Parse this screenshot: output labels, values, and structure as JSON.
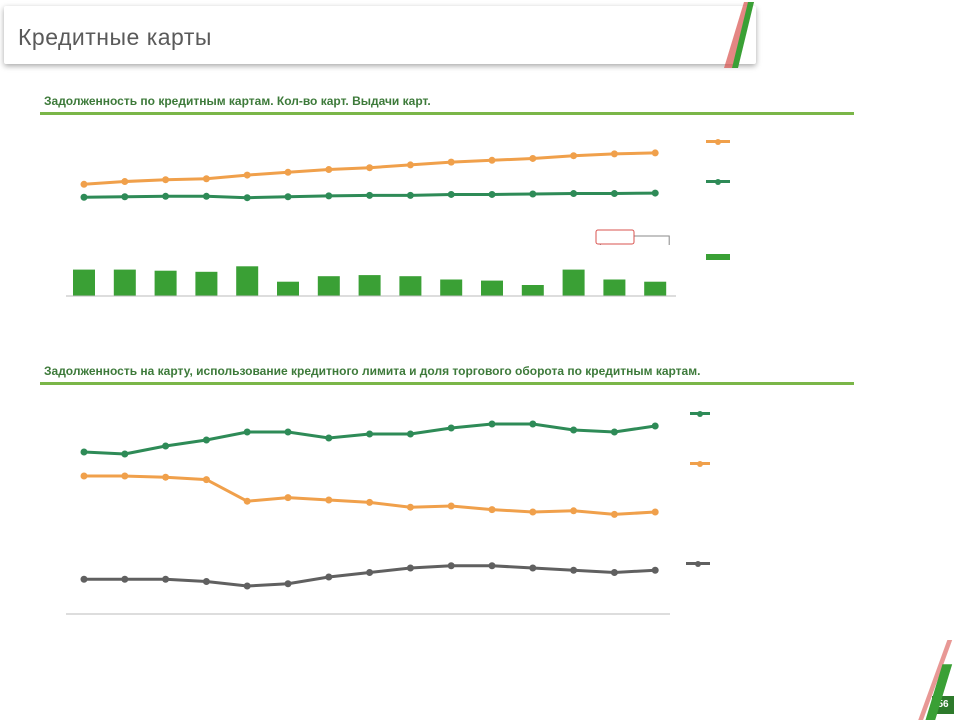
{
  "page": {
    "title": "Кредитные карты",
    "page_number": "56",
    "copyright": "",
    "footnote_source": "",
    "footnote_note": ""
  },
  "colors": {
    "orange": "#f0a04b",
    "green": "#2e8b57",
    "bar_green": "#3aa035",
    "gray": "#606060",
    "rule": "#7ab648",
    "highlight": "#d9534f"
  },
  "section1": {
    "title": "Задолженность по кредитным картам. Кол-во карт. Выдачи карт.",
    "unit": "",
    "callout_line": "",
    "callout_bar": ""
  },
  "section2": {
    "title": "Задолженность на карту, использование кредитного лимита и доля торгового оборота по кредитным картам."
  },
  "chart_data": [
    {
      "type": "line",
      "categories": [
        "",
        "",
        "",
        "",
        "",
        "",
        "",
        "",
        "",
        "",
        "",
        "",
        "",
        "",
        ""
      ],
      "series": [
        {
          "name": "",
          "values": [
            72.0,
            75.0,
            77.0,
            78.0,
            82.0,
            85.0,
            88.0,
            90.0,
            93.0,
            96.0,
            98.0,
            100.0,
            103.0,
            105.0,
            106.0
          ]
        },
        {
          "name": "",
          "values": [
            58.0,
            58.5,
            59.0,
            59.0,
            57.5,
            58.5,
            59.5,
            60.0,
            60.0,
            61.0,
            61.0,
            61.5,
            62.0,
            62.0,
            62.5
          ]
        }
      ],
      "value_labels": [
        [
          "",
          "",
          "",
          "",
          "",
          "",
          "",
          "",
          "",
          "",
          "",
          "",
          "",
          "",
          ""
        ],
        [
          "",
          "",
          "",
          "",
          "",
          "",
          "",
          "",
          "",
          "",
          "",
          "",
          "",
          "",
          ""
        ]
      ]
    },
    {
      "type": "bar",
      "categories": [
        "",
        "",
        "",
        "",
        "",
        "",
        "",
        "",
        "",
        "",
        "",
        "",
        "",
        "",
        ""
      ],
      "series": [
        {
          "name": "",
          "values": [
            104,
            104,
            103,
            102,
            107,
            93,
            98,
            99,
            98,
            95,
            94,
            90,
            104,
            95,
            93
          ]
        }
      ],
      "value_labels": [
        "",
        "",
        "",
        "",
        "",
        "",
        "",
        "",
        "",
        "",
        "",
        "",
        "",
        "",
        ""
      ]
    },
    {
      "type": "line",
      "categories": [
        "",
        "",
        "",
        "",
        "",
        "",
        "",
        "",
        "",
        "",
        "",
        "",
        "",
        "",
        ""
      ],
      "series": [
        {
          "name": "",
          "values": [
            72.0,
            71.5,
            73.5,
            75.0,
            77.0,
            77.0,
            75.5,
            76.5,
            76.5,
            78.0,
            79.0,
            79.0,
            77.5,
            77.0,
            78.5
          ]
        },
        {
          "name": "",
          "values": [
            23.5,
            23.5,
            23.4,
            23.2,
            21.4,
            21.7,
            21.5,
            21.3,
            20.9,
            21.0,
            20.7,
            20.5,
            20.6,
            20.3,
            20.5
          ]
        },
        {
          "name": "",
          "values": [
            38.5,
            38.5,
            38.5,
            38.0,
            37.0,
            37.5,
            39.0,
            40.0,
            41.0,
            41.5,
            41.5,
            41.0,
            40.5,
            40.0,
            40.5
          ]
        }
      ],
      "value_labels": [
        [
          "",
          "",
          "",
          "",
          "",
          "",
          "",
          "",
          "",
          "",
          "",
          "",
          "",
          "",
          ""
        ],
        [
          "",
          "",
          "",
          "",
          "",
          "",
          "",
          "",
          "",
          "",
          "",
          "",
          "",
          "",
          ""
        ],
        [
          "",
          "",
          "",
          "",
          "",
          "",
          "",
          "",
          "",
          "",
          "",
          "",
          "",
          "",
          ""
        ]
      ]
    }
  ]
}
